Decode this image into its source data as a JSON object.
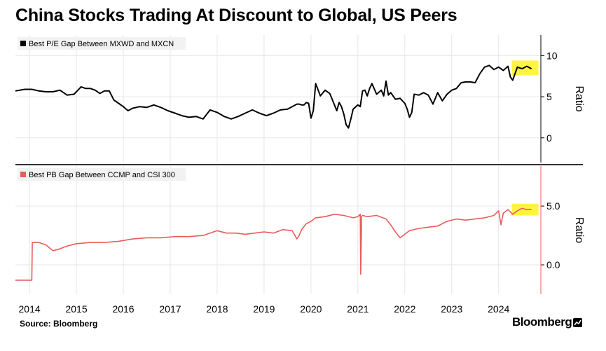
{
  "title": "China Stocks Trading At Discount to Global, US Peers",
  "source": "Source: Bloomberg",
  "brand": "Bloomberg",
  "colors": {
    "series1": "#000000",
    "series2": "#e85c5c",
    "highlight": "#fff200",
    "grid": "#e6e6e6"
  },
  "chart_data": [
    {
      "type": "line",
      "legend": "Best P/E Gap Between MXWD and MXCN",
      "ylabel": "Ratio",
      "ylim": [
        -3,
        12.5
      ],
      "yticks": [
        0,
        5,
        10
      ],
      "xlim": [
        2013.7,
        2024.9
      ],
      "highlight": {
        "x": [
          2024.28,
          2024.85
        ],
        "y": [
          7.6,
          9.4
        ]
      },
      "series": [
        {
          "x": [
            2013.7,
            2013.9,
            2014.05,
            2014.2,
            2014.35,
            2014.5,
            2014.65,
            2014.8,
            2014.95,
            2015.1,
            2015.2,
            2015.3,
            2015.4,
            2015.5,
            2015.6,
            2015.7,
            2015.8,
            2015.9,
            2016.0,
            2016.1,
            2016.2,
            2016.35,
            2016.5,
            2016.65,
            2016.8,
            2016.95,
            2017.1,
            2017.25,
            2017.4,
            2017.55,
            2017.7,
            2017.85,
            2018.0,
            2018.15,
            2018.3,
            2018.45,
            2018.6,
            2018.75,
            2018.9,
            2019.05,
            2019.2,
            2019.35,
            2019.5,
            2019.6,
            2019.7,
            2019.75,
            2019.8,
            2019.85,
            2019.9,
            2019.95,
            2020.0,
            2020.05,
            2020.1,
            2020.2,
            2020.3,
            2020.4,
            2020.5,
            2020.55,
            2020.6,
            2020.65,
            2020.7,
            2020.75,
            2020.8,
            2020.85,
            2020.9,
            2021.0,
            2021.05,
            2021.1,
            2021.15,
            2021.2,
            2021.25,
            2021.3,
            2021.4,
            2021.5,
            2021.55,
            2021.6,
            2021.65,
            2021.7,
            2021.8,
            2021.9,
            2022.0,
            2022.05,
            2022.1,
            2022.15,
            2022.2,
            2022.3,
            2022.4,
            2022.5,
            2022.6,
            2022.7,
            2022.8,
            2022.9,
            2023.0,
            2023.1,
            2023.2,
            2023.3,
            2023.4,
            2023.5,
            2023.6,
            2023.7,
            2023.8,
            2023.9,
            2024.0,
            2024.1,
            2024.2,
            2024.25,
            2024.3,
            2024.4,
            2024.5,
            2024.6,
            2024.7
          ],
          "values": [
            5.7,
            5.9,
            5.9,
            5.7,
            5.6,
            5.6,
            5.8,
            5.2,
            5.3,
            6.2,
            6.0,
            6.0,
            5.8,
            5.4,
            5.7,
            5.7,
            4.6,
            4.2,
            3.8,
            3.3,
            3.6,
            3.8,
            3.7,
            4.0,
            3.7,
            3.3,
            3.0,
            2.7,
            2.5,
            2.6,
            2.3,
            3.4,
            3.1,
            2.6,
            2.3,
            2.6,
            3.0,
            3.4,
            3.0,
            2.7,
            3.0,
            3.4,
            3.5,
            3.8,
            4.1,
            4.1,
            4.0,
            4.0,
            4.3,
            4.2,
            2.4,
            3.3,
            6.6,
            5.1,
            5.8,
            5.4,
            4.0,
            3.3,
            4.3,
            3.8,
            2.9,
            1.6,
            1.2,
            2.3,
            3.5,
            4.0,
            3.8,
            5.7,
            5.8,
            5.1,
            6.0,
            6.6,
            5.3,
            5.8,
            5.1,
            6.9,
            5.2,
            5.5,
            4.7,
            4.8,
            4.2,
            3.5,
            2.5,
            3.1,
            5.3,
            5.2,
            5.5,
            5.2,
            4.1,
            5.5,
            4.5,
            5.3,
            5.8,
            6.0,
            6.7,
            6.8,
            6.8,
            6.7,
            7.8,
            8.6,
            8.8,
            8.3,
            8.6,
            8.2,
            8.7,
            7.4,
            7.0,
            8.6,
            8.4,
            8.7,
            8.4
          ]
        }
      ]
    },
    {
      "type": "line",
      "legend": "Best PB Gap Between CCMP and CSI 300",
      "ylabel": "Ratio",
      "ylim": [
        -2.5,
        8.4
      ],
      "yticks": [
        0.0,
        5.0
      ],
      "yticklabels": [
        "0.0",
        "5.0"
      ],
      "xlim": [
        2013.7,
        2024.9
      ],
      "highlight": {
        "x": [
          2024.28,
          2024.85
        ],
        "y": [
          4.2,
          5.2
        ]
      },
      "xticks": [
        "2014",
        "2015",
        "2016",
        "2017",
        "2018",
        "2019",
        "2020",
        "2021",
        "2022",
        "2023",
        "2024"
      ],
      "series": [
        {
          "x": [
            2013.7,
            2013.9,
            2014.0,
            2014.05,
            2014.06,
            2014.2,
            2014.35,
            2014.5,
            2014.6,
            2014.8,
            2015.0,
            2015.3,
            2015.6,
            2015.9,
            2016.2,
            2016.5,
            2016.8,
            2017.1,
            2017.4,
            2017.7,
            2018.0,
            2018.2,
            2018.4,
            2018.6,
            2018.8,
            2019.0,
            2019.2,
            2019.4,
            2019.6,
            2019.7,
            2019.75,
            2019.8,
            2019.9,
            2020.0,
            2020.1,
            2020.3,
            2020.5,
            2020.7,
            2020.9,
            2021.0,
            2021.05,
            2021.06,
            2021.08,
            2021.1,
            2021.2,
            2021.4,
            2021.6,
            2021.7,
            2021.8,
            2021.9,
            2022.0,
            2022.1,
            2022.3,
            2022.5,
            2022.7,
            2022.9,
            2023.1,
            2023.3,
            2023.5,
            2023.7,
            2023.9,
            2024.0,
            2024.05,
            2024.1,
            2024.2,
            2024.3,
            2024.4,
            2024.5,
            2024.6,
            2024.7
          ],
          "values": [
            -1.3,
            -1.3,
            -1.3,
            -1.3,
            1.9,
            1.9,
            1.7,
            1.2,
            1.3,
            1.6,
            1.8,
            1.9,
            1.9,
            2.0,
            2.2,
            2.3,
            2.3,
            2.4,
            2.4,
            2.5,
            2.9,
            2.7,
            2.7,
            2.6,
            2.7,
            2.8,
            2.7,
            3.0,
            2.9,
            2.2,
            2.5,
            3.0,
            3.5,
            3.7,
            4.0,
            4.1,
            4.3,
            4.2,
            4.0,
            4.1,
            4.3,
            -0.8,
            4.1,
            4.2,
            4.1,
            4.2,
            3.9,
            3.4,
            2.8,
            2.3,
            2.6,
            2.9,
            3.1,
            3.2,
            3.3,
            3.7,
            3.9,
            3.8,
            3.9,
            4.0,
            4.2,
            4.6,
            3.4,
            4.4,
            4.7,
            4.3,
            4.6,
            4.8,
            4.7,
            4.7
          ]
        }
      ]
    }
  ]
}
